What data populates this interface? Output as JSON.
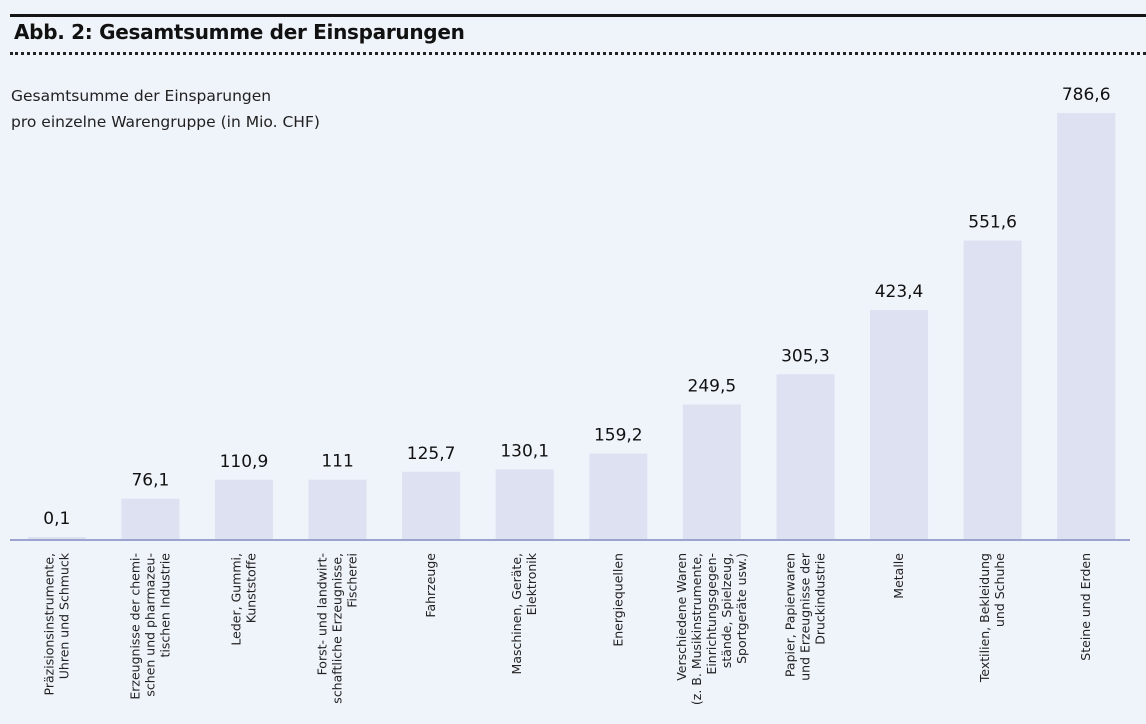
{
  "figure": {
    "title": "Abb. 2: Gesamtsumme der Einsparungen",
    "subtitle_line1": "Gesamtsumme der Einsparungen",
    "subtitle_line2": "pro einzelne Warengruppe (in Mio. CHF)"
  },
  "colors": {
    "bar": "#dde1f1",
    "baseline": "#9ba4cf",
    "background": "#eff3fa"
  },
  "chart_data": {
    "type": "bar",
    "title": "Abb. 2: Gesamtsumme der Einsparungen",
    "subtitle": "Gesamtsumme der Einsparungen pro einzelne Warengruppe (in Mio. CHF)",
    "xlabel": "",
    "ylabel": "Mio. CHF",
    "ylim": [
      0,
      786.6
    ],
    "grid": false,
    "legend": "none",
    "categories": [
      [
        "Präzisionsinstrumente,",
        "Uhren und Schmuck"
      ],
      [
        "Erzeugnisse der chemi-",
        "schen und pharmazeu-",
        "tischen Industrie"
      ],
      [
        "Leder, Gummi,",
        "Kunststoffe"
      ],
      [
        "Forst- und landwirt-",
        "schaftliche Erzeugnisse,",
        "Fischerei"
      ],
      [
        "Fahrzeuge"
      ],
      [
        "Maschinen, Geräte,",
        "Elektronik"
      ],
      [
        "Energiequellen"
      ],
      [
        "Verschiedene Waren",
        "(z. B. Musikinstrumente,",
        "Einrichtungsgegen-",
        "stände, Spielzeug,",
        "Sportgeräte usw.)"
      ],
      [
        "Papier, Papierwaren",
        "und Erzeugnisse der",
        "Druckindustrie"
      ],
      [
        "Metalle"
      ],
      [
        "Textilien, Bekleidung",
        "und Schuhe"
      ],
      [
        "Steine und Erden"
      ]
    ],
    "values": [
      0.1,
      76.1,
      110.9,
      111,
      125.7,
      130.1,
      159.2,
      249.5,
      305.3,
      423.4,
      551.6,
      786.6
    ],
    "value_labels": [
      "0,1",
      "76,1",
      "110,9",
      "111",
      "125,7",
      "130,1",
      "159,2",
      "249,5",
      "305,3",
      "423,4",
      "551,6",
      "786,6"
    ]
  }
}
